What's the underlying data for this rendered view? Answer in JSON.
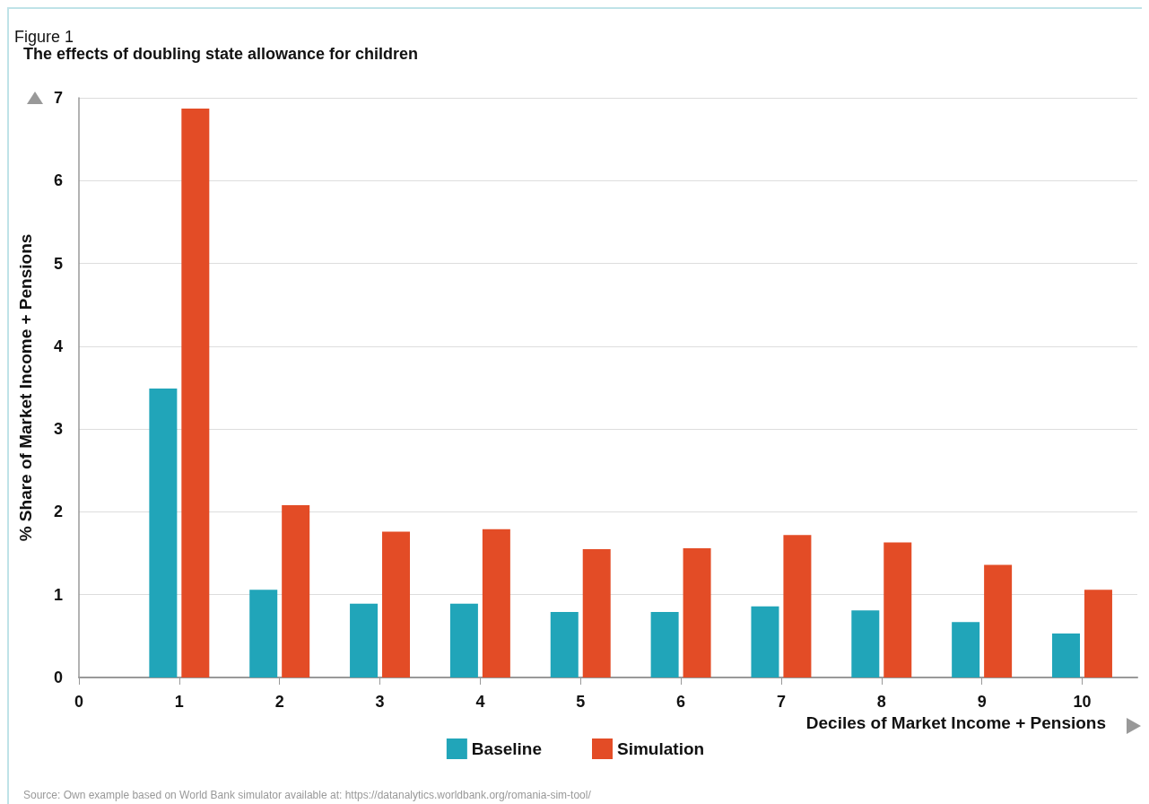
{
  "chart_data": {
    "type": "bar",
    "subtitle": "Figure 1",
    "title": "The effects of doubling state allowance for children",
    "xlabel": "Deciles of Market Income + Pensions",
    "ylabel": "% Share of Market Income + Pensions",
    "x": [
      1,
      2,
      3,
      4,
      5,
      6,
      7,
      8,
      9,
      10
    ],
    "series": [
      {
        "name": "Baseline",
        "color": "#21a5b9",
        "values": [
          3.49,
          1.06,
          0.89,
          0.89,
          0.79,
          0.79,
          0.86,
          0.81,
          0.67,
          0.53
        ]
      },
      {
        "name": "Simulation",
        "color": "#e34c26",
        "values": [
          6.87,
          2.08,
          1.76,
          1.79,
          1.55,
          1.56,
          1.72,
          1.63,
          1.36,
          1.06
        ]
      }
    ],
    "xlim": [
      0,
      10.55
    ],
    "xticks": [
      0,
      1,
      2,
      3,
      4,
      5,
      6,
      7,
      8,
      9,
      10
    ],
    "ylim": [
      0,
      7
    ],
    "yticks": [
      0,
      1,
      2,
      3,
      4,
      5,
      6,
      7
    ],
    "grid": "y",
    "legend": "bottom",
    "annotations": [
      "Source: Own example based on World Bank simulator available at: https://datanalytics.worldbank.org/romania-sim-tool/"
    ]
  }
}
